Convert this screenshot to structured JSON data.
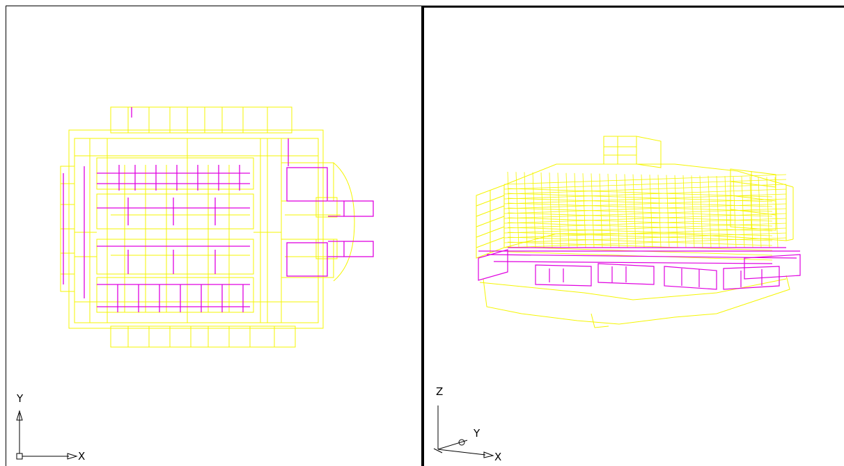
{
  "viewports": {
    "top": {
      "view": "Top",
      "ucs": {
        "x_label": "X",
        "y_label": "Y"
      }
    },
    "iso": {
      "view": "SE Isometric",
      "ucs": {
        "x_label": "X",
        "y_label": "Y",
        "z_label": "Z"
      }
    }
  },
  "colors": {
    "background": "#ffffff",
    "layer_yellow": "#f5f500",
    "layer_magenta": "#e000e0",
    "active_border": "#000000"
  }
}
